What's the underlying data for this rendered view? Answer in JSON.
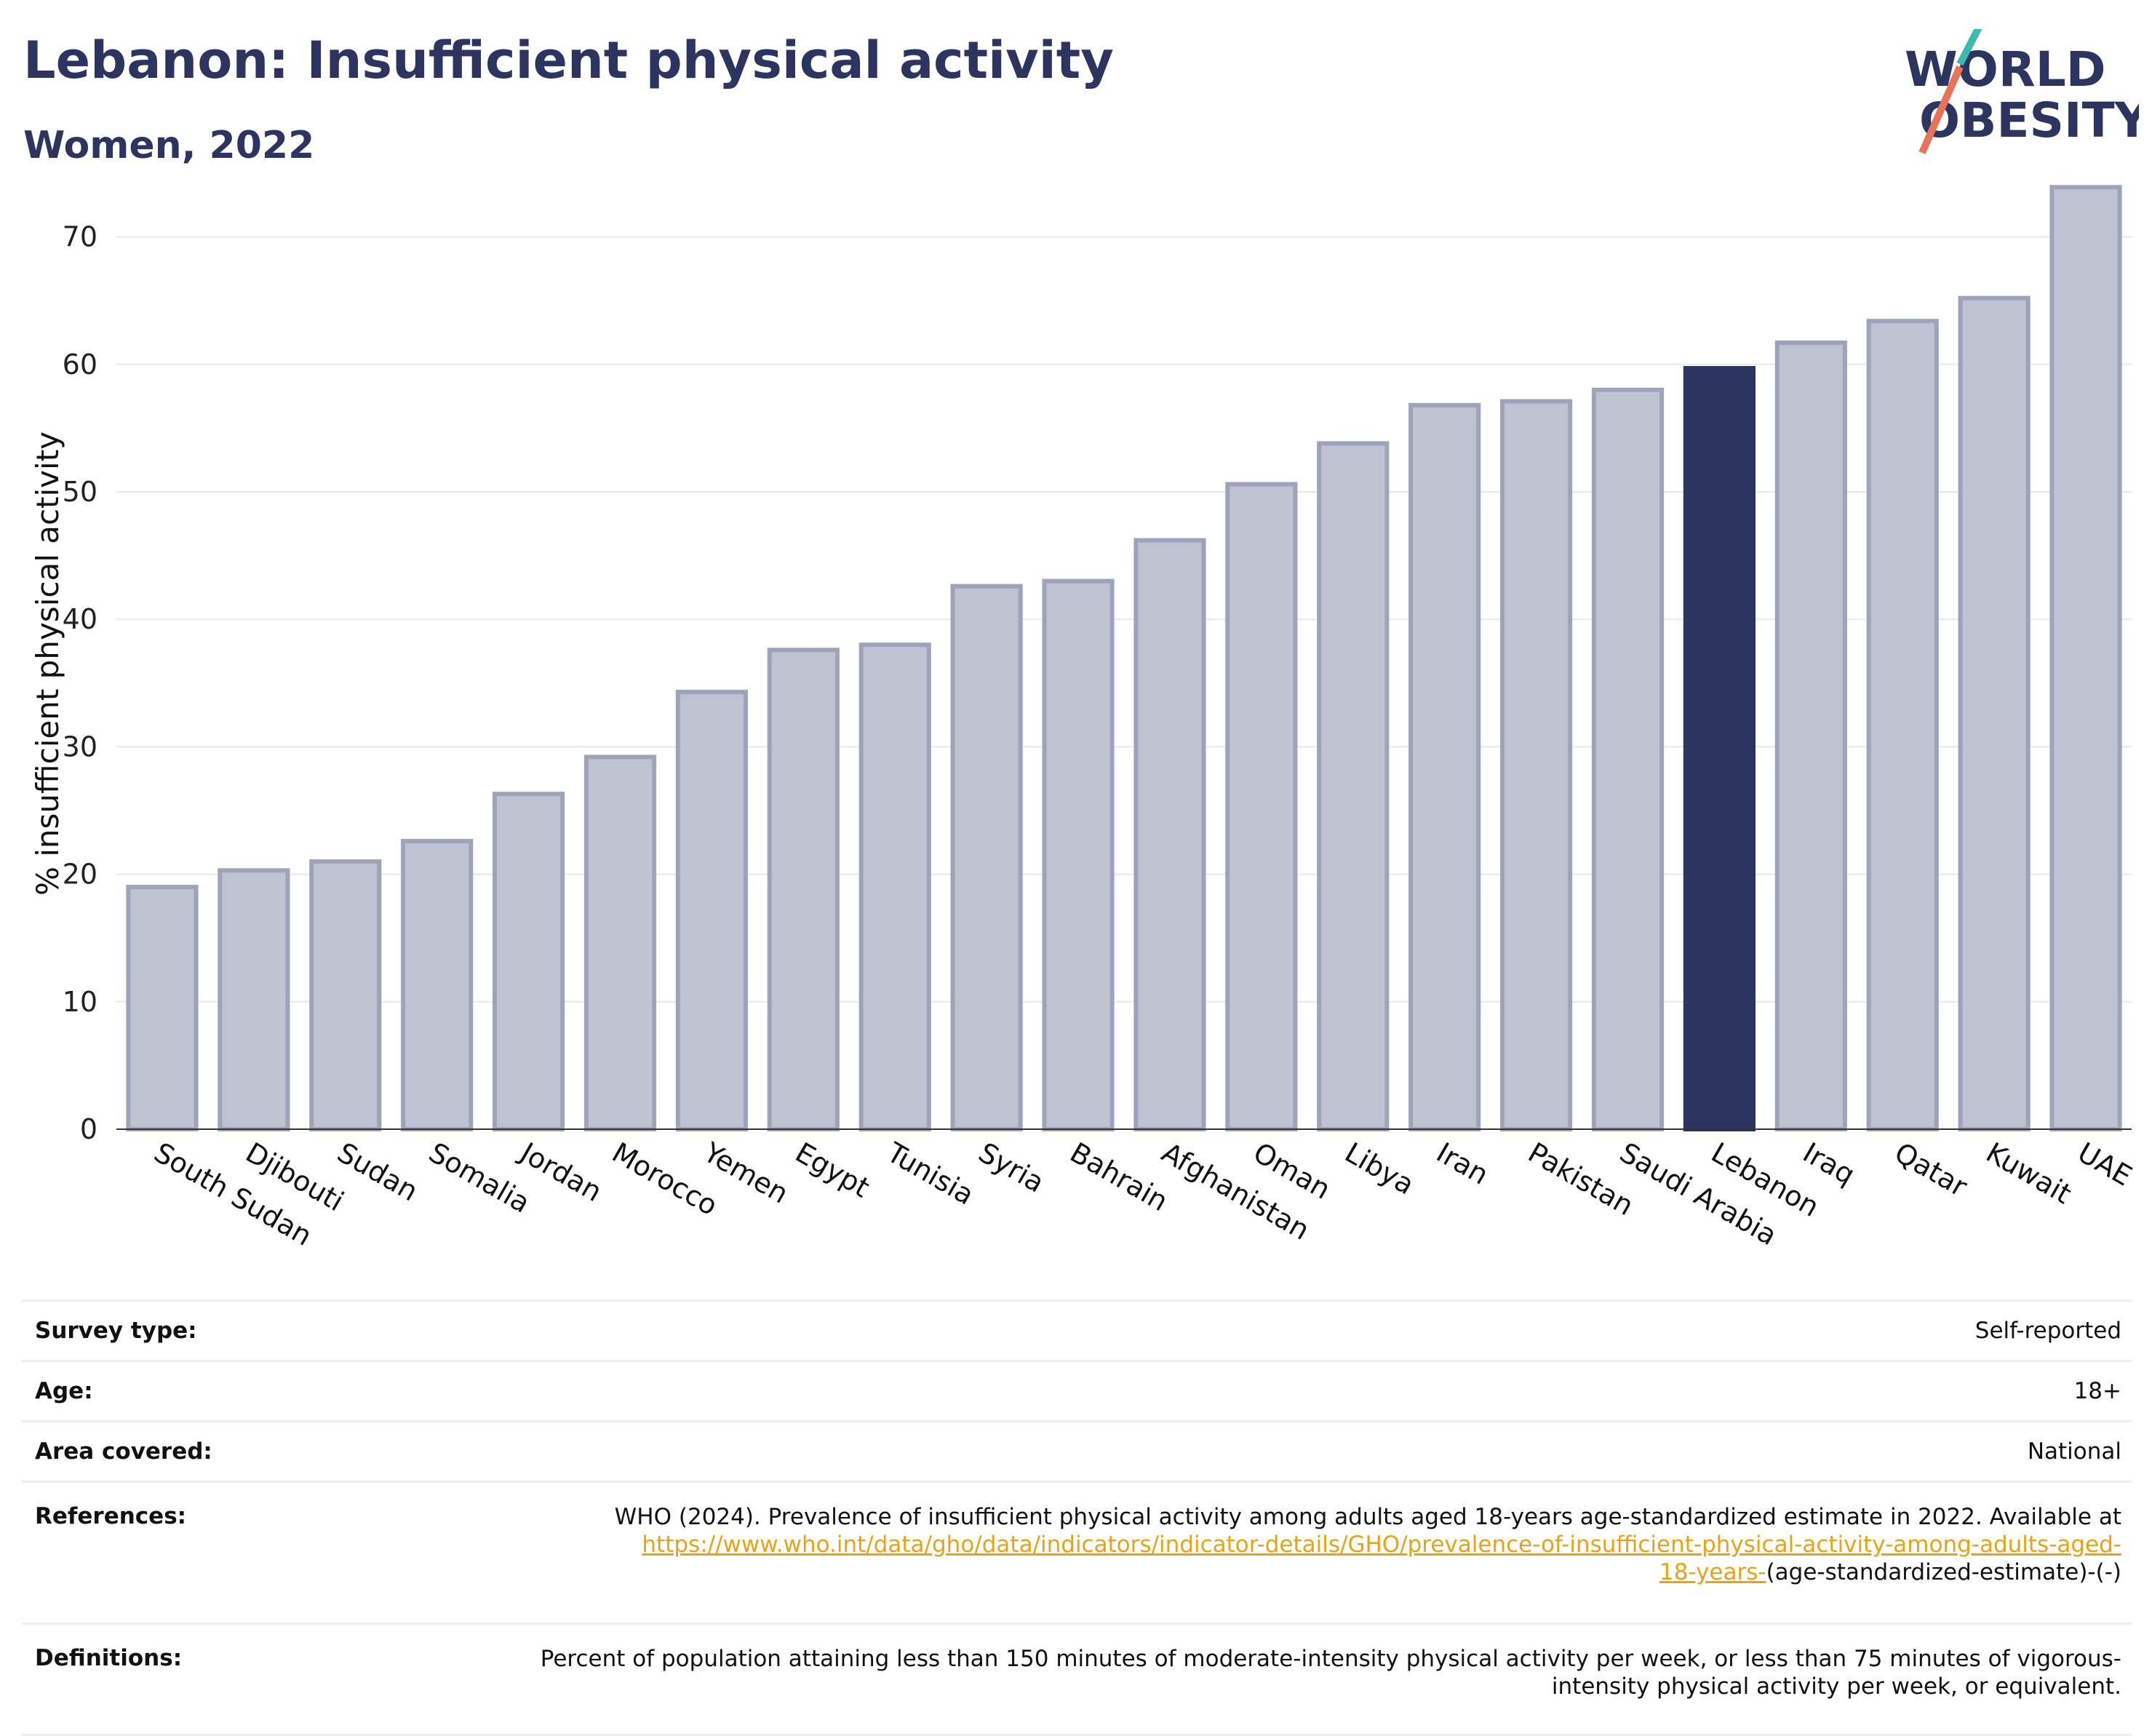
{
  "header": {
    "title": "Lebanon: Insufficient physical activity",
    "subtitle": "Women, 2022"
  },
  "logo": {
    "line1": "WORLD",
    "line2": "OBESITY",
    "accent_colors": [
      "#3bb8b0",
      "#e8735a"
    ]
  },
  "colors": {
    "bar_default": "#bfc3d1",
    "bar_border": "#9da3bb",
    "bar_highlight": "#2b3560",
    "title": "#2b3560",
    "link": "#e8a317"
  },
  "chart_data": {
    "type": "bar",
    "highlight": "Lebanon",
    "categories": [
      "South Sudan",
      "Djibouti",
      "Sudan",
      "Somalia",
      "Jordan",
      "Morocco",
      "Yemen",
      "Egypt",
      "Tunisia",
      "Syria",
      "Bahrain",
      "Afghanistan",
      "Oman",
      "Libya",
      "Iran",
      "Pakistan",
      "Saudi Arabia",
      "Lebanon",
      "Iraq",
      "Qatar",
      "Kuwait",
      "UAE"
    ],
    "values": [
      19.0,
      20.3,
      21.0,
      22.6,
      26.3,
      29.2,
      34.3,
      37.6,
      38.0,
      42.6,
      43.0,
      46.2,
      50.6,
      53.8,
      56.8,
      57.1,
      58.0,
      59.7,
      61.7,
      63.4,
      65.2,
      73.9
    ],
    "ylabel": "% insufficient physical activity",
    "ylim": [
      0,
      75
    ],
    "yticks": [
      0,
      10,
      20,
      30,
      40,
      50,
      60,
      70
    ],
    "grid": true
  },
  "info": {
    "survey_type": {
      "label": "Survey type:",
      "value": "Self-reported"
    },
    "age": {
      "label": "Age:",
      "value": "18+"
    },
    "area": {
      "label": "Area covered:",
      "value": "National"
    },
    "references": {
      "label": "References:",
      "text": "WHO (2024). Prevalence of insufficient physical activity among adults aged 18-years age-standardized estimate in 2022. Available at",
      "link_line1": "https://www.who.int/data/gho/data/indicators/indicator-details/GHO/prevalence-of-insufficient-physical-activity-among-adults-aged-",
      "link_line2": "18-years-",
      "suffix": "(age-standardized-estimate)-(-)"
    },
    "definitions": {
      "label": "Definitions:",
      "value": "Percent of population attaining less than 150 minutes of moderate-intensity physical activity per week, or less than 75 minutes of vigorous-intensity physical activity per week, or equivalent."
    }
  }
}
